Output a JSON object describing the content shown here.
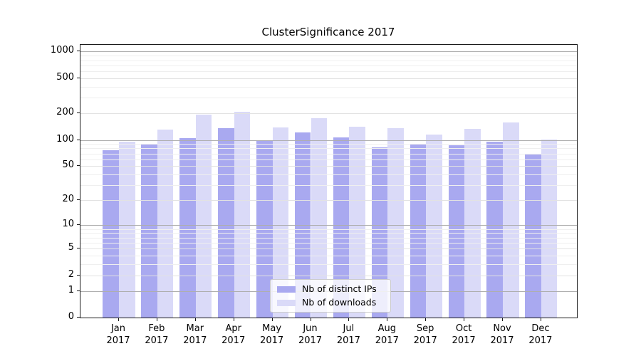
{
  "title": "ClusterSignificance 2017",
  "colors": {
    "distinct_ips": "#a9a9f0",
    "downloads": "#dadaf8",
    "grid_decade": "#aeaeae",
    "grid_major": "#e2e2e2",
    "grid_minor": "#efefef"
  },
  "chart_data": {
    "type": "bar",
    "title": "ClusterSignificance 2017",
    "categories": [
      "Jan 2017",
      "Feb 2017",
      "Mar 2017",
      "Apr 2017",
      "May 2017",
      "Jun 2017",
      "Jul 2017",
      "Aug 2017",
      "Sep 2017",
      "Oct 2017",
      "Nov 2017",
      "Dec 2017"
    ],
    "series": [
      {
        "name": "Nb of distinct IPs",
        "color": "#a9a9f0",
        "values": [
          76,
          88,
          105,
          137,
          98,
          121,
          107,
          82,
          90,
          87,
          96,
          68
        ]
      },
      {
        "name": "Nb of downloads",
        "color": "#dadaf8",
        "values": [
          95,
          130,
          195,
          208,
          139,
          175,
          141,
          137,
          116,
          133,
          158,
          101
        ]
      }
    ],
    "yscale": "log1p",
    "yticks": [
      0,
      1,
      2,
      5,
      10,
      20,
      50,
      100,
      200,
      500,
      1000
    ],
    "yticks_decade": [
      1,
      10,
      100,
      1000
    ],
    "yticks_minor": [
      3,
      4,
      6,
      7,
      8,
      9,
      30,
      40,
      60,
      70,
      80,
      90,
      300,
      400,
      600,
      700,
      800,
      900
    ],
    "ylim": [
      0,
      1230
    ],
    "xlabel": "",
    "ylabel": "",
    "grid": true,
    "legend_position": "lower center"
  }
}
